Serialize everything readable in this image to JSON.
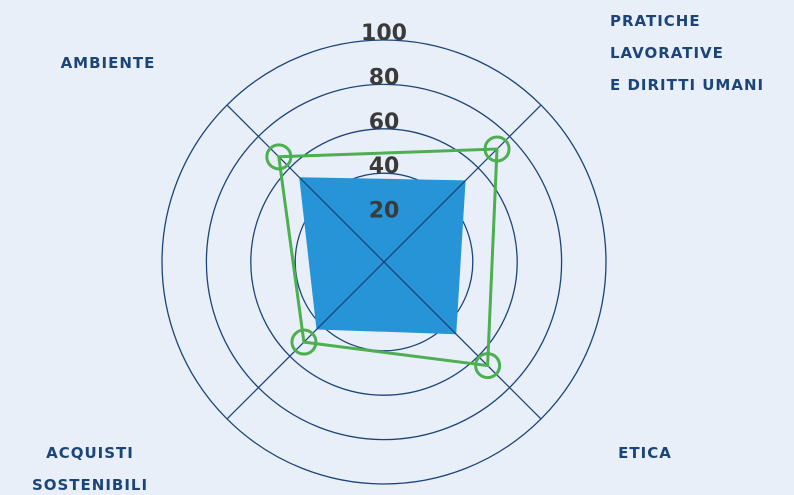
{
  "chart_data": {
    "type": "radar",
    "categories": [
      "AMBIENTE",
      "PRATICHE\nLAVORATIVE\nE DIRITTI UMANI",
      "ETICA",
      "ACQUISTI\nSOSTENIBILI"
    ],
    "series": [
      {
        "color": "#2694d6",
        "values": [
          54,
          52,
          46,
          43
        ]
      },
      {
        "color": "#4caf50",
        "values": [
          67,
          72,
          66,
          51
        ]
      }
    ],
    "rlim": [
      0,
      100
    ],
    "rticks": [
      20,
      40,
      60,
      80,
      100
    ]
  }
}
